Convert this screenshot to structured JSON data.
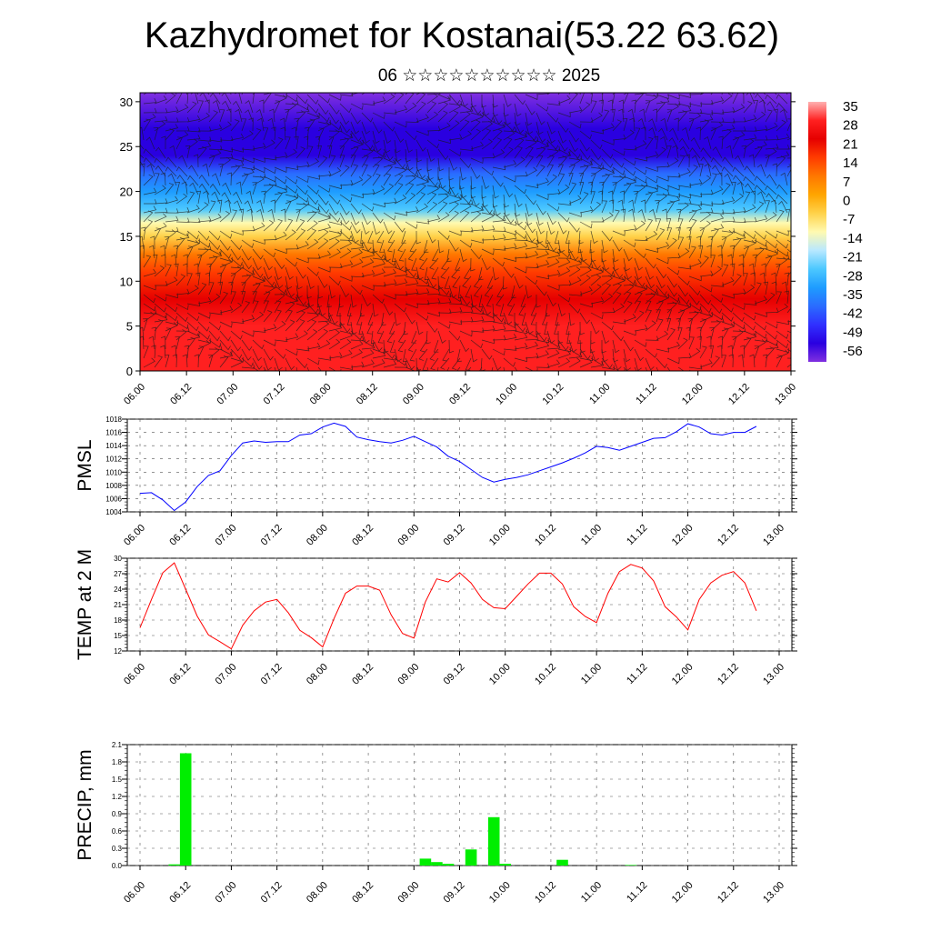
{
  "title": "Kazhydromet for Kostanai(53.22 63.62)",
  "subtitle": "06 ☆☆☆☆☆☆☆☆☆☆ 2025",
  "chart_data": [
    {
      "type": "heatmap",
      "ylim": [
        0,
        31
      ],
      "y_ticks": [
        "0",
        "5",
        "10",
        "15",
        "20",
        "25",
        "30"
      ],
      "x_ticks": [
        "06.00",
        "06.12",
        "07.00",
        "07.12",
        "08.00",
        "08.12",
        "09.00",
        "09.12",
        "10.00",
        "10.12",
        "11.00",
        "11.12",
        "12.00",
        "12.12",
        "13.00"
      ],
      "colorbar": {
        "labels": [
          "35",
          "28",
          "21",
          "14",
          "7",
          "0",
          "-7",
          "-14",
          "-21",
          "-28",
          "-35",
          "-42",
          "-49",
          "-56"
        ],
        "colors": [
          "#ffb0b0",
          "#ff2020",
          "#e60000",
          "#ff3c00",
          "#ff7800",
          "#ffa500",
          "#ffd24a",
          "#fffab0",
          "#b8e8ff",
          "#4cc8ff",
          "#1e9cff",
          "#2a6cff",
          "#3030ff",
          "#2a00e0",
          "#8030e0"
        ]
      },
      "layers": [
        {
          "level": 0,
          "value": 30
        },
        {
          "level": 5,
          "value": 27
        },
        {
          "level": 8,
          "value": 22
        },
        {
          "level": 11,
          "value": 14
        },
        {
          "level": 13,
          "value": 6
        },
        {
          "level": 15,
          "value": -3
        },
        {
          "level": 16.5,
          "value": -12
        },
        {
          "level": 18,
          "value": -22
        },
        {
          "level": 20,
          "value": -32
        },
        {
          "level": 22,
          "value": -42
        },
        {
          "level": 24,
          "value": -50
        },
        {
          "level": 27,
          "value": -56
        },
        {
          "level": 31,
          "value": -58
        }
      ],
      "wind_barbs": true
    },
    {
      "type": "line",
      "ylabel": "PMSL",
      "ylim": [
        1004,
        1018
      ],
      "y_ticks": [
        "1004",
        "1006",
        "1008",
        "1010",
        "1012",
        "1014",
        "1016",
        "1018"
      ],
      "x_ticks": [
        "06.00",
        "06.12",
        "07.00",
        "07.12",
        "08.00",
        "08.12",
        "09.00",
        "09.12",
        "10.00",
        "10.12",
        "11.00",
        "11.12",
        "12.00",
        "12.12",
        "13.00"
      ],
      "series": [
        {
          "color": "#0000ff",
          "x": [
            0,
            3,
            6,
            9,
            12,
            15,
            18,
            21,
            24,
            27,
            30,
            33,
            36,
            39,
            42,
            45,
            48,
            51,
            54,
            57,
            60,
            63,
            66,
            69,
            72,
            75,
            78,
            81,
            84,
            87,
            90,
            93,
            96,
            99,
            102,
            105,
            108,
            111,
            114,
            117,
            120,
            123,
            126,
            129,
            132,
            135,
            138,
            141,
            144,
            147,
            150,
            153,
            156,
            159,
            162
          ],
          "values": [
            1006.8,
            1006.9,
            1005.8,
            1004.2,
            1005.5,
            1007.8,
            1009.5,
            1010.2,
            1012.5,
            1014.4,
            1014.7,
            1014.5,
            1014.6,
            1014.6,
            1015.6,
            1015.8,
            1016.8,
            1017.4,
            1016.9,
            1015.3,
            1014.9,
            1014.6,
            1014.4,
            1014.8,
            1015.4,
            1014.6,
            1013.8,
            1012.4,
            1011.6,
            1010.4,
            1009.2,
            1008.5,
            1008.9,
            1009.2,
            1009.6,
            1010.2,
            1010.8,
            1011.4,
            1012.1,
            1012.9,
            1013.9,
            1013.7,
            1013.3,
            1013.9,
            1014.5,
            1015.1,
            1015.2,
            1016.1,
            1017.3,
            1016.8,
            1015.8,
            1015.6,
            1016.0,
            1016.0,
            1016.9
          ]
        }
      ]
    },
    {
      "type": "line",
      "ylabel": "TEMP at 2 M",
      "ylim": [
        12,
        30
      ],
      "y_ticks": [
        "12",
        "15",
        "18",
        "21",
        "24",
        "27",
        "30"
      ],
      "x_ticks": [
        "06.00",
        "06.12",
        "07.00",
        "07.12",
        "08.00",
        "08.12",
        "09.00",
        "09.12",
        "10.00",
        "10.12",
        "11.00",
        "11.12",
        "12.00",
        "12.12",
        "13.00"
      ],
      "series": [
        {
          "color": "#ff0000",
          "x": [
            0,
            3,
            6,
            9,
            12,
            15,
            18,
            21,
            24,
            27,
            30,
            33,
            36,
            39,
            42,
            45,
            48,
            51,
            54,
            57,
            60,
            63,
            66,
            69,
            72,
            75,
            78,
            81,
            84,
            87,
            90,
            93,
            96,
            99,
            102,
            105,
            108,
            111,
            114,
            117,
            120,
            123,
            126,
            129,
            132,
            135,
            138,
            141,
            144,
            147,
            150,
            153,
            156,
            159,
            162
          ],
          "values": [
            16.5,
            22.0,
            27.2,
            29.1,
            24.0,
            18.8,
            15.1,
            13.8,
            12.4,
            17.0,
            19.8,
            21.5,
            22.0,
            19.4,
            16.0,
            14.6,
            12.8,
            18.3,
            23.2,
            24.6,
            24.6,
            23.8,
            19.0,
            15.4,
            14.5,
            21.5,
            26.0,
            25.4,
            27.2,
            25.2,
            22.0,
            20.4,
            20.2,
            22.6,
            25.0,
            27.1,
            27.1,
            25.0,
            20.6,
            18.7,
            17.5,
            23.2,
            27.4,
            28.8,
            28.1,
            25.6,
            20.6,
            18.6,
            16.1,
            22.0,
            25.2,
            26.7,
            27.4,
            25.2,
            19.8
          ]
        }
      ]
    },
    {
      "type": "bar",
      "ylabel": "PRECIP, mm",
      "ylim": [
        0,
        2.1
      ],
      "y_ticks": [
        "0.0",
        "0.3",
        "0.6",
        "0.9",
        "1.2",
        "1.5",
        "1.8",
        "2.1"
      ],
      "x_ticks": [
        "06.00",
        "06.12",
        "07.00",
        "07.12",
        "08.00",
        "08.12",
        "09.00",
        "09.12",
        "10.00",
        "10.12",
        "11.00",
        "11.12",
        "12.00",
        "12.12",
        "13.00"
      ],
      "bar_color": "#00ee00",
      "x": [
        9,
        12,
        75,
        78,
        81,
        87,
        93,
        96,
        111,
        129
      ],
      "values": [
        0.02,
        1.95,
        0.12,
        0.06,
        0.03,
        0.28,
        0.84,
        0.03,
        0.1,
        0.01
      ]
    }
  ]
}
